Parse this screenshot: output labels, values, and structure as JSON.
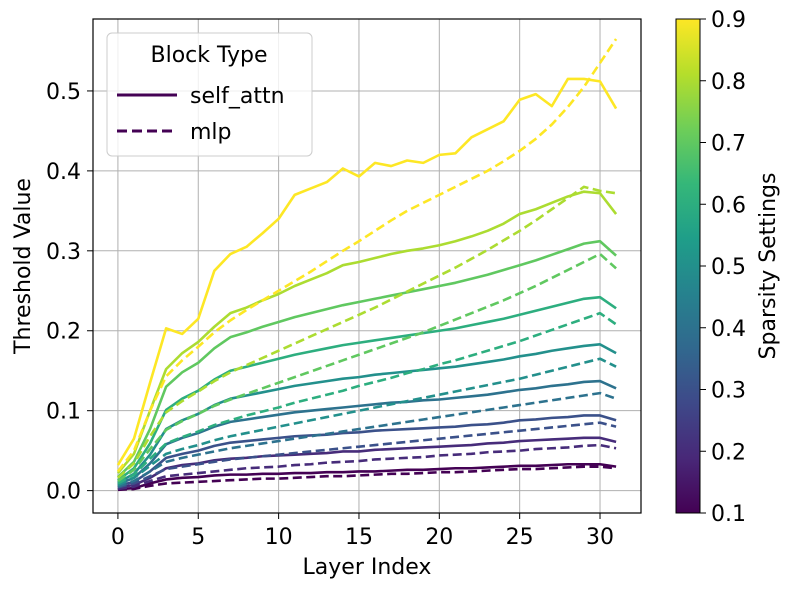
{
  "chart_data": {
    "type": "line",
    "xlabel": "Layer Index",
    "ylabel": "Threshold Value",
    "xlim": [
      -1.55,
      32.55
    ],
    "ylim": [
      -0.028,
      0.59
    ],
    "xticks": [
      0,
      5,
      10,
      15,
      20,
      25,
      30
    ],
    "yticks": [
      0.0,
      0.1,
      0.2,
      0.3,
      0.4,
      0.5
    ],
    "ytick_labels": [
      "0.0",
      "0.1",
      "0.2",
      "0.3",
      "0.4",
      "0.5"
    ],
    "grid": true,
    "legend": {
      "title": "Block Type",
      "location": "top-left",
      "entries": [
        {
          "label": "self_attn",
          "style": "solid",
          "color": "#440154"
        },
        {
          "label": "mlp",
          "style": "dashed",
          "color": "#440154"
        }
      ]
    },
    "colorbar": {
      "label": "Sparsity Settings",
      "min": 0.1,
      "max": 0.9,
      "ticks": [
        0.1,
        0.2,
        0.3,
        0.4,
        0.5,
        0.6,
        0.7,
        0.8,
        0.9
      ],
      "tick_labels": [
        "0.1",
        "0.2",
        "0.3",
        "0.4",
        "0.5",
        "0.6",
        "0.7",
        "0.8",
        "0.9"
      ],
      "colormap": "viridis",
      "stops": [
        "#440154",
        "#482878",
        "#3e4989",
        "#31688e",
        "#26828e",
        "#1f9e89",
        "#35b779",
        "#6ece58",
        "#b5de2b",
        "#fde725"
      ]
    },
    "x": [
      0,
      1,
      2,
      3,
      4,
      5,
      6,
      7,
      8,
      9,
      10,
      11,
      12,
      13,
      14,
      15,
      16,
      17,
      18,
      19,
      20,
      21,
      22,
      23,
      24,
      25,
      26,
      27,
      28,
      29,
      30,
      31
    ],
    "series": [
      {
        "name": "mlp 0.1",
        "block": "mlp",
        "sparsity": 0.1,
        "values": [
          0.001,
          0.002,
          0.006,
          0.009,
          0.01,
          0.011,
          0.012,
          0.013,
          0.014,
          0.015,
          0.015,
          0.016,
          0.017,
          0.018,
          0.018,
          0.019,
          0.02,
          0.021,
          0.021,
          0.022,
          0.023,
          0.023,
          0.024,
          0.025,
          0.026,
          0.027,
          0.027,
          0.028,
          0.029,
          0.03,
          0.03,
          0.028
        ]
      },
      {
        "name": "self_attn 0.1",
        "block": "self_attn",
        "sparsity": 0.1,
        "values": [
          0.002,
          0.003,
          0.009,
          0.014,
          0.016,
          0.017,
          0.019,
          0.02,
          0.02,
          0.021,
          0.021,
          0.022,
          0.022,
          0.023,
          0.023,
          0.024,
          0.024,
          0.025,
          0.026,
          0.026,
          0.027,
          0.028,
          0.028,
          0.029,
          0.03,
          0.031,
          0.031,
          0.032,
          0.033,
          0.033,
          0.033,
          0.03
        ]
      },
      {
        "name": "mlp 0.2",
        "block": "mlp",
        "sparsity": 0.2,
        "values": [
          0.002,
          0.005,
          0.012,
          0.018,
          0.02,
          0.022,
          0.024,
          0.026,
          0.028,
          0.029,
          0.03,
          0.032,
          0.033,
          0.035,
          0.036,
          0.037,
          0.039,
          0.04,
          0.041,
          0.042,
          0.044,
          0.045,
          0.046,
          0.048,
          0.049,
          0.05,
          0.052,
          0.053,
          0.054,
          0.056,
          0.057,
          0.053
        ]
      },
      {
        "name": "self_attn 0.2",
        "block": "self_attn",
        "sparsity": 0.2,
        "values": [
          0.004,
          0.007,
          0.016,
          0.028,
          0.032,
          0.034,
          0.038,
          0.04,
          0.041,
          0.043,
          0.044,
          0.045,
          0.046,
          0.047,
          0.049,
          0.049,
          0.051,
          0.052,
          0.053,
          0.054,
          0.055,
          0.056,
          0.057,
          0.059,
          0.06,
          0.062,
          0.063,
          0.064,
          0.065,
          0.066,
          0.066,
          0.061
        ]
      },
      {
        "name": "mlp 0.3",
        "block": "mlp",
        "sparsity": 0.3,
        "values": [
          0.004,
          0.009,
          0.018,
          0.027,
          0.03,
          0.033,
          0.036,
          0.039,
          0.041,
          0.043,
          0.045,
          0.047,
          0.049,
          0.051,
          0.053,
          0.055,
          0.057,
          0.059,
          0.061,
          0.063,
          0.065,
          0.067,
          0.069,
          0.071,
          0.073,
          0.075,
          0.077,
          0.079,
          0.081,
          0.083,
          0.085,
          0.08
        ]
      },
      {
        "name": "self_attn 0.3",
        "block": "self_attn",
        "sparsity": 0.3,
        "values": [
          0.006,
          0.011,
          0.024,
          0.041,
          0.046,
          0.05,
          0.056,
          0.06,
          0.062,
          0.064,
          0.066,
          0.068,
          0.069,
          0.07,
          0.072,
          0.073,
          0.075,
          0.076,
          0.077,
          0.078,
          0.079,
          0.08,
          0.082,
          0.083,
          0.085,
          0.088,
          0.089,
          0.091,
          0.092,
          0.094,
          0.094,
          0.088
        ]
      },
      {
        "name": "mlp 0.4",
        "block": "mlp",
        "sparsity": 0.4,
        "values": [
          0.005,
          0.012,
          0.024,
          0.036,
          0.041,
          0.045,
          0.049,
          0.053,
          0.056,
          0.059,
          0.062,
          0.065,
          0.068,
          0.071,
          0.074,
          0.077,
          0.08,
          0.083,
          0.086,
          0.089,
          0.092,
          0.095,
          0.098,
          0.101,
          0.104,
          0.107,
          0.11,
          0.113,
          0.116,
          0.119,
          0.122,
          0.115
        ]
      },
      {
        "name": "self_attn 0.4",
        "block": "self_attn",
        "sparsity": 0.4,
        "values": [
          0.008,
          0.016,
          0.034,
          0.058,
          0.066,
          0.072,
          0.08,
          0.086,
          0.089,
          0.092,
          0.095,
          0.098,
          0.1,
          0.102,
          0.104,
          0.106,
          0.108,
          0.11,
          0.111,
          0.113,
          0.114,
          0.116,
          0.118,
          0.12,
          0.123,
          0.126,
          0.128,
          0.131,
          0.133,
          0.136,
          0.137,
          0.128
        ]
      },
      {
        "name": "mlp 0.5",
        "block": "mlp",
        "sparsity": 0.5,
        "values": [
          0.007,
          0.016,
          0.031,
          0.046,
          0.052,
          0.057,
          0.063,
          0.068,
          0.072,
          0.076,
          0.08,
          0.084,
          0.088,
          0.092,
          0.096,
          0.1,
          0.104,
          0.108,
          0.112,
          0.116,
          0.12,
          0.124,
          0.128,
          0.132,
          0.136,
          0.14,
          0.145,
          0.15,
          0.155,
          0.16,
          0.165,
          0.155
        ]
      },
      {
        "name": "self_attn 0.5",
        "block": "self_attn",
        "sparsity": 0.5,
        "values": [
          0.01,
          0.021,
          0.045,
          0.077,
          0.088,
          0.096,
          0.107,
          0.115,
          0.119,
          0.123,
          0.127,
          0.131,
          0.134,
          0.137,
          0.14,
          0.142,
          0.145,
          0.147,
          0.149,
          0.151,
          0.153,
          0.155,
          0.158,
          0.161,
          0.164,
          0.168,
          0.171,
          0.175,
          0.178,
          0.181,
          0.183,
          0.172
        ]
      },
      {
        "name": "mlp 0.6",
        "block": "mlp",
        "sparsity": 0.6,
        "values": [
          0.009,
          0.02,
          0.04,
          0.059,
          0.067,
          0.074,
          0.082,
          0.088,
          0.094,
          0.099,
          0.104,
          0.11,
          0.115,
          0.12,
          0.125,
          0.131,
          0.136,
          0.141,
          0.147,
          0.152,
          0.158,
          0.163,
          0.169,
          0.175,
          0.181,
          0.187,
          0.194,
          0.201,
          0.208,
          0.215,
          0.222,
          0.208
        ]
      },
      {
        "name": "self_attn 0.6",
        "block": "self_attn",
        "sparsity": 0.6,
        "values": [
          0.013,
          0.028,
          0.059,
          0.101,
          0.115,
          0.125,
          0.139,
          0.15,
          0.155,
          0.16,
          0.165,
          0.17,
          0.174,
          0.178,
          0.182,
          0.185,
          0.188,
          0.191,
          0.194,
          0.197,
          0.2,
          0.203,
          0.207,
          0.211,
          0.215,
          0.22,
          0.225,
          0.23,
          0.235,
          0.24,
          0.242,
          0.228
        ]
      },
      {
        "name": "mlp 0.7",
        "block": "mlp",
        "sparsity": 0.7,
        "values": [
          0.012,
          0.026,
          0.052,
          0.076,
          0.087,
          0.096,
          0.106,
          0.114,
          0.121,
          0.128,
          0.135,
          0.142,
          0.149,
          0.156,
          0.163,
          0.17,
          0.177,
          0.184,
          0.191,
          0.198,
          0.206,
          0.214,
          0.222,
          0.23,
          0.238,
          0.247,
          0.256,
          0.266,
          0.276,
          0.286,
          0.296,
          0.278
        ]
      },
      {
        "name": "self_attn 0.7",
        "block": "self_attn",
        "sparsity": 0.7,
        "values": [
          0.017,
          0.036,
          0.077,
          0.13,
          0.148,
          0.16,
          0.178,
          0.192,
          0.198,
          0.205,
          0.211,
          0.217,
          0.222,
          0.227,
          0.232,
          0.236,
          0.24,
          0.244,
          0.248,
          0.252,
          0.256,
          0.26,
          0.265,
          0.27,
          0.276,
          0.282,
          0.288,
          0.295,
          0.302,
          0.309,
          0.312,
          0.294
        ]
      },
      {
        "name": "mlp 0.8",
        "block": "mlp",
        "sparsity": 0.8,
        "values": [
          0.016,
          0.034,
          0.068,
          0.098,
          0.112,
          0.124,
          0.137,
          0.148,
          0.157,
          0.166,
          0.175,
          0.184,
          0.193,
          0.202,
          0.211,
          0.22,
          0.229,
          0.239,
          0.249,
          0.259,
          0.269,
          0.279,
          0.29,
          0.301,
          0.313,
          0.325,
          0.338,
          0.352,
          0.366,
          0.38,
          0.375,
          0.372
        ]
      },
      {
        "name": "self_attn 0.8",
        "block": "self_attn",
        "sparsity": 0.8,
        "values": [
          0.022,
          0.046,
          0.1,
          0.152,
          0.172,
          0.186,
          0.205,
          0.222,
          0.229,
          0.238,
          0.246,
          0.256,
          0.264,
          0.272,
          0.282,
          0.286,
          0.291,
          0.296,
          0.3,
          0.303,
          0.307,
          0.312,
          0.318,
          0.325,
          0.334,
          0.346,
          0.352,
          0.36,
          0.368,
          0.374,
          0.372,
          0.346
        ]
      },
      {
        "name": "mlp 0.9",
        "block": "mlp",
        "sparsity": 0.9,
        "values": [
          0.024,
          0.05,
          0.1,
          0.143,
          0.163,
          0.18,
          0.198,
          0.213,
          0.226,
          0.238,
          0.25,
          0.262,
          0.274,
          0.287,
          0.3,
          0.312,
          0.325,
          0.338,
          0.35,
          0.36,
          0.37,
          0.38,
          0.39,
          0.4,
          0.412,
          0.425,
          0.44,
          0.458,
          0.48,
          0.505,
          0.535,
          0.565
        ]
      },
      {
        "name": "self_attn 0.9",
        "block": "self_attn",
        "sparsity": 0.9,
        "values": [
          0.032,
          0.065,
          0.135,
          0.203,
          0.196,
          0.215,
          0.275,
          0.296,
          0.305,
          0.322,
          0.34,
          0.37,
          0.378,
          0.386,
          0.403,
          0.393,
          0.41,
          0.406,
          0.413,
          0.41,
          0.42,
          0.422,
          0.442,
          0.452,
          0.462,
          0.489,
          0.496,
          0.481,
          0.515,
          0.515,
          0.512,
          0.478
        ]
      }
    ]
  }
}
